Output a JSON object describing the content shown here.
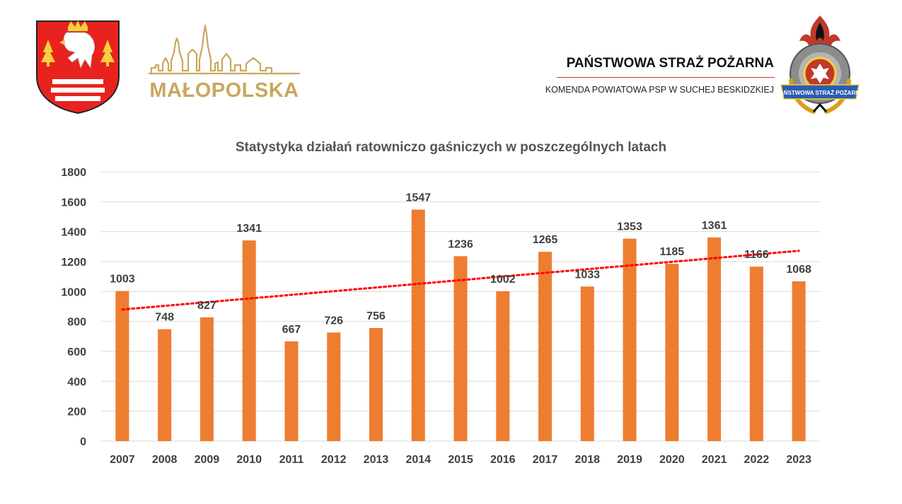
{
  "header": {
    "region_name": "MAŁOPOLSKA",
    "org_title": "PAŃSTWOWA STRAŻ POŻARNA",
    "org_subtitle": "KOMENDA POWIATOWA PSP W SUCHEJ BESKIDZKIEJ",
    "emblem_banner": "PAŃSTWOWA STRAŻ POŻARNA"
  },
  "colors": {
    "bar": "#ed7d31",
    "trend": "#ff0000",
    "grid": "#d9d9d9",
    "text": "#404040"
  },
  "chart_data": {
    "type": "bar",
    "title": "Statystyka działań ratowniczo gaśniczych w poszczególnych latach",
    "categories": [
      "2007",
      "2008",
      "2009",
      "2010",
      "2011",
      "2012",
      "2013",
      "2014",
      "2015",
      "2016",
      "2017",
      "2018",
      "2019",
      "2020",
      "2021",
      "2022",
      "2023"
    ],
    "values": [
      1003,
      748,
      827,
      1341,
      667,
      726,
      756,
      1547,
      1236,
      1002,
      1265,
      1033,
      1353,
      1185,
      1361,
      1166,
      1068
    ],
    "y_ticks": [
      0,
      200,
      400,
      600,
      800,
      1000,
      1200,
      1400,
      1600,
      1800
    ],
    "ylim": [
      0,
      1800
    ],
    "xlabel": "",
    "ylabel": "",
    "grid": true,
    "trendline": {
      "type": "linear",
      "style": "dotted"
    }
  }
}
